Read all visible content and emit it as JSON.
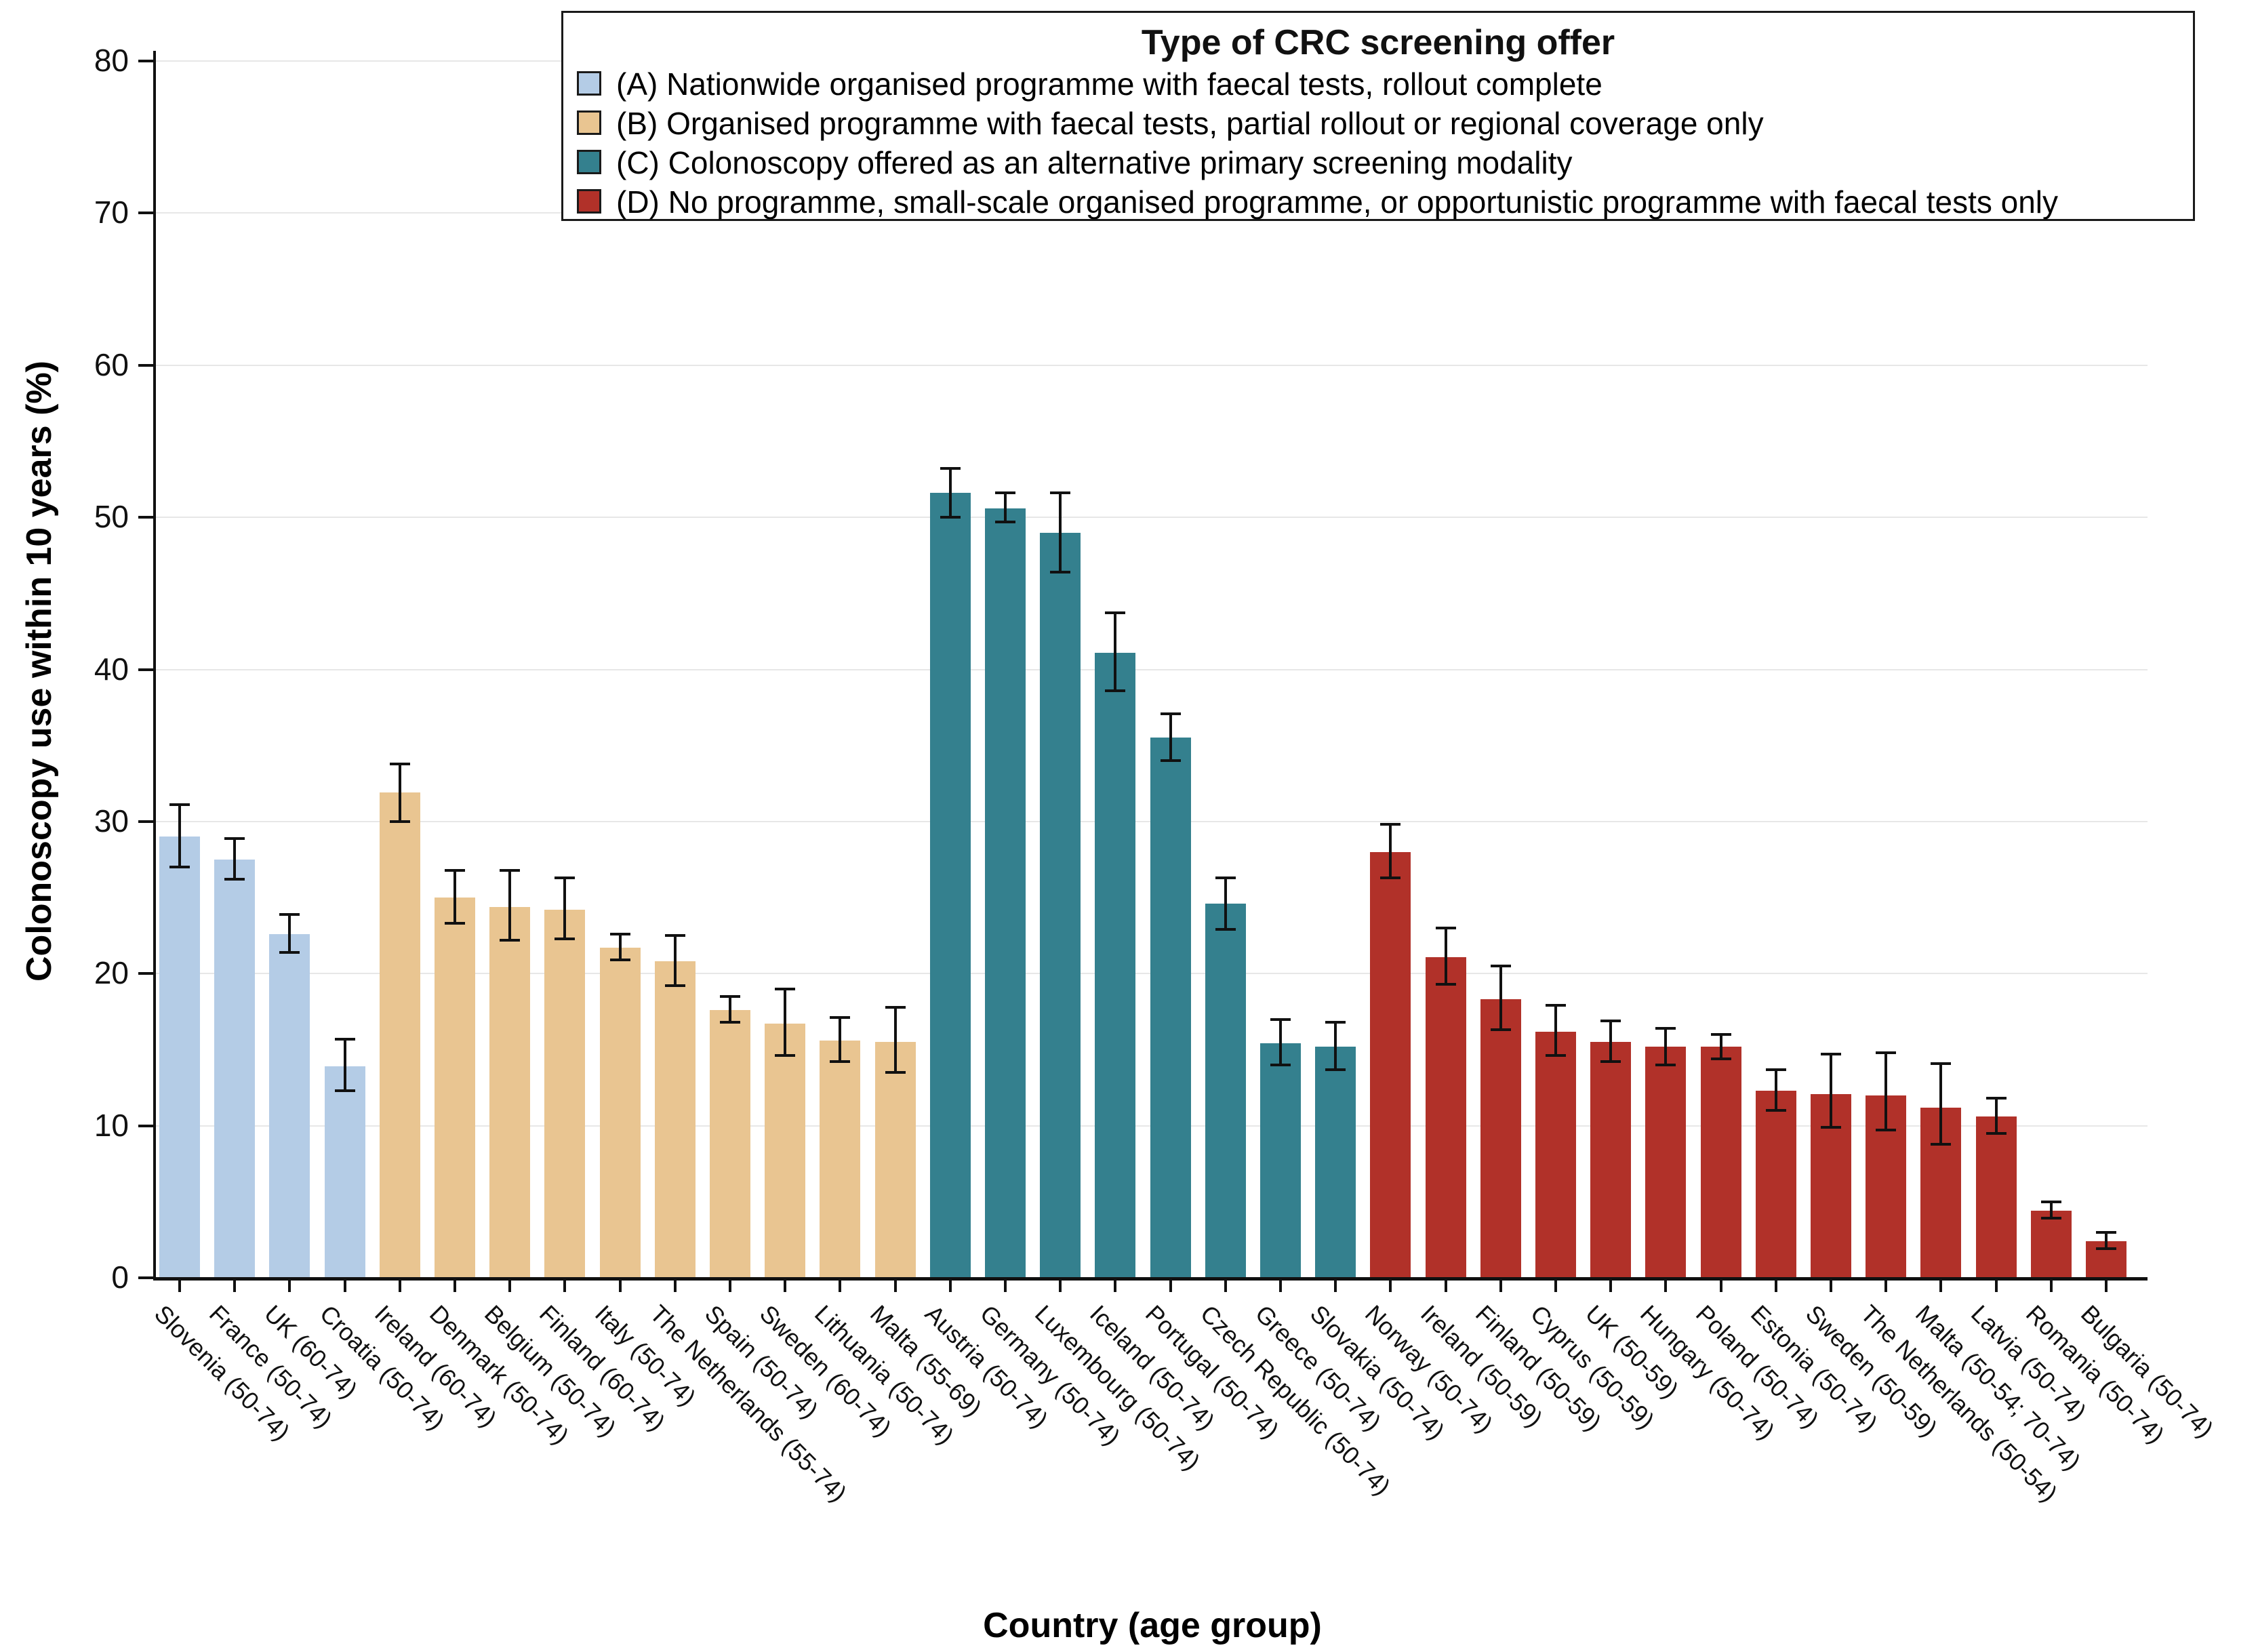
{
  "chart_data": {
    "type": "bar",
    "xlabel": "Country (age group)",
    "ylabel": "Colonoscopy use within 10 years (%)",
    "ylim": [
      0,
      80
    ],
    "yticks": [
      0,
      10,
      20,
      30,
      40,
      50,
      60,
      70,
      80
    ],
    "grid": "horizontal gridlines at every 10",
    "error_bars": "95% confidence intervals with caps",
    "legend": {
      "title": "Type of CRC screening offer",
      "position": "top",
      "entries": [
        {
          "key": "A",
          "label": "(A) Nationwide organised programme with faecal tests, rollout complete",
          "color": "#b4cce6"
        },
        {
          "key": "B",
          "label": "(B) Organised programme with faecal tests, partial rollout or regional coverage only",
          "color": "#e9c591"
        },
        {
          "key": "C",
          "label": "(C) Colonoscopy offered as an alternative primary screening modality",
          "color": "#34808e"
        },
        {
          "key": "D",
          "label": "(D) No programme, small-scale organised programme, or opportunistic programme with faecal tests only",
          "color": "#b13129"
        }
      ]
    },
    "bars": [
      {
        "label": "Slovenia (50-74)",
        "group": "A",
        "value": 29.0,
        "ci_low": 27.0,
        "ci_high": 31.1
      },
      {
        "label": "France (50-74)",
        "group": "A",
        "value": 27.5,
        "ci_low": 26.2,
        "ci_high": 28.9
      },
      {
        "label": "UK (60-74)",
        "group": "A",
        "value": 22.6,
        "ci_low": 21.4,
        "ci_high": 23.9
      },
      {
        "label": "Croatia (50-74)",
        "group": "A",
        "value": 13.9,
        "ci_low": 12.3,
        "ci_high": 15.7
      },
      {
        "label": "Ireland (60-74)",
        "group": "B",
        "value": 31.9,
        "ci_low": 30.0,
        "ci_high": 33.8
      },
      {
        "label": "Denmark (50-74)",
        "group": "B",
        "value": 25.0,
        "ci_low": 23.3,
        "ci_high": 26.8
      },
      {
        "label": "Belgium (50-74)",
        "group": "B",
        "value": 24.4,
        "ci_low": 22.2,
        "ci_high": 26.8
      },
      {
        "label": "Finland (60-74)",
        "group": "B",
        "value": 24.2,
        "ci_low": 22.3,
        "ci_high": 26.3
      },
      {
        "label": "Italy (50-74)",
        "group": "B",
        "value": 21.7,
        "ci_low": 20.9,
        "ci_high": 22.6
      },
      {
        "label": "The Netherlands (55-74)",
        "group": "B",
        "value": 20.8,
        "ci_low": 19.2,
        "ci_high": 22.5
      },
      {
        "label": "Spain (50-74)",
        "group": "B",
        "value": 17.6,
        "ci_low": 16.8,
        "ci_high": 18.5
      },
      {
        "label": "Sweden (60-74)",
        "group": "B",
        "value": 16.7,
        "ci_low": 14.6,
        "ci_high": 19.0
      },
      {
        "label": "Lithuania (50-74)",
        "group": "B",
        "value": 15.6,
        "ci_low": 14.2,
        "ci_high": 17.1
      },
      {
        "label": "Malta (55-69)",
        "group": "B",
        "value": 15.5,
        "ci_low": 13.5,
        "ci_high": 17.8
      },
      {
        "label": "Austria (50-74)",
        "group": "C",
        "value": 51.6,
        "ci_low": 50.0,
        "ci_high": 53.2
      },
      {
        "label": "Germany (50-74)",
        "group": "C",
        "value": 50.6,
        "ci_low": 49.7,
        "ci_high": 51.6
      },
      {
        "label": "Luxembourg (50-74)",
        "group": "C",
        "value": 49.0,
        "ci_low": 46.4,
        "ci_high": 51.6
      },
      {
        "label": "Iceland (50-74)",
        "group": "C",
        "value": 41.1,
        "ci_low": 38.6,
        "ci_high": 43.7
      },
      {
        "label": "Portugal (50-74)",
        "group": "C",
        "value": 35.5,
        "ci_low": 34.0,
        "ci_high": 37.1
      },
      {
        "label": "Czech Republic (50-74)",
        "group": "C",
        "value": 24.6,
        "ci_low": 22.9,
        "ci_high": 26.3
      },
      {
        "label": "Greece (50-74)",
        "group": "C",
        "value": 15.4,
        "ci_low": 14.0,
        "ci_high": 17.0
      },
      {
        "label": "Slovakia (50-74)",
        "group": "C",
        "value": 15.2,
        "ci_low": 13.7,
        "ci_high": 16.8
      },
      {
        "label": "Norway (50-74)",
        "group": "D",
        "value": 28.0,
        "ci_low": 26.3,
        "ci_high": 29.8
      },
      {
        "label": "Ireland (50-59)",
        "group": "D",
        "value": 21.1,
        "ci_low": 19.3,
        "ci_high": 23.0
      },
      {
        "label": "Finland (50-59)",
        "group": "D",
        "value": 18.3,
        "ci_low": 16.3,
        "ci_high": 20.5
      },
      {
        "label": "Cyprus (50-59)",
        "group": "D",
        "value": 16.2,
        "ci_low": 14.6,
        "ci_high": 17.9
      },
      {
        "label": "UK (50-59)",
        "group": "D",
        "value": 15.5,
        "ci_low": 14.2,
        "ci_high": 16.9
      },
      {
        "label": "Hungary (50-74)",
        "group": "D",
        "value": 15.2,
        "ci_low": 14.0,
        "ci_high": 16.4
      },
      {
        "label": "Poland (50-74)",
        "group": "D",
        "value": 15.2,
        "ci_low": 14.4,
        "ci_high": 16.0
      },
      {
        "label": "Estonia (50-74)",
        "group": "D",
        "value": 12.3,
        "ci_low": 11.0,
        "ci_high": 13.7
      },
      {
        "label": "Sweden (50-59)",
        "group": "D",
        "value": 12.1,
        "ci_low": 9.9,
        "ci_high": 14.7
      },
      {
        "label": "The Netherlands (50-54)",
        "group": "D",
        "value": 12.0,
        "ci_low": 9.7,
        "ci_high": 14.8
      },
      {
        "label": "Malta (50-54; 70-74)",
        "group": "D",
        "value": 11.2,
        "ci_low": 8.8,
        "ci_high": 14.1
      },
      {
        "label": "Latvia (50-74)",
        "group": "D",
        "value": 10.6,
        "ci_low": 9.5,
        "ci_high": 11.8
      },
      {
        "label": "Romania (50-74)",
        "group": "D",
        "value": 4.4,
        "ci_low": 3.9,
        "ci_high": 5.0
      },
      {
        "label": "Bulgaria (50-74)",
        "group": "D",
        "value": 2.4,
        "ci_low": 1.9,
        "ci_high": 3.0
      }
    ]
  }
}
